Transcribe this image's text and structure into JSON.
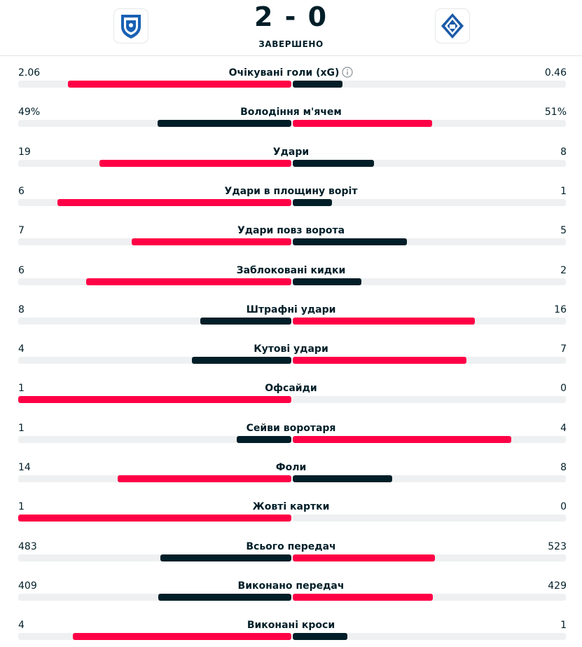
{
  "match": {
    "score": "2 - 0",
    "status": "ЗАВЕРШЕНО",
    "home_logo": "hoffenheim-crest",
    "away_logo": "dynamo-kyiv-crest"
  },
  "colors": {
    "leader": "#ff0046",
    "trailer": "#001e28",
    "track": "#eef0f1"
  },
  "stats": [
    {
      "label": "Очікувані голи (xG)",
      "home": "2.06",
      "away": "0.46",
      "home_value": 2.06,
      "away_value": 0.46,
      "info": true
    },
    {
      "label": "Володіння м'ячем",
      "home": "49%",
      "away": "51%",
      "home_value": 49,
      "away_value": 51
    },
    {
      "label": "Удари",
      "home": "19",
      "away": "8",
      "home_value": 19,
      "away_value": 8
    },
    {
      "label": "Удари в площину воріт",
      "home": "6",
      "away": "1",
      "home_value": 6,
      "away_value": 1
    },
    {
      "label": "Удари повз ворота",
      "home": "7",
      "away": "5",
      "home_value": 7,
      "away_value": 5
    },
    {
      "label": "Заблоковані кидки",
      "home": "6",
      "away": "2",
      "home_value": 6,
      "away_value": 2
    },
    {
      "label": "Штрафні удари",
      "home": "8",
      "away": "16",
      "home_value": 8,
      "away_value": 16
    },
    {
      "label": "Кутові удари",
      "home": "4",
      "away": "7",
      "home_value": 4,
      "away_value": 7
    },
    {
      "label": "Офсайди",
      "home": "1",
      "away": "0",
      "home_value": 1,
      "away_value": 0
    },
    {
      "label": "Сейви воротаря",
      "home": "1",
      "away": "4",
      "home_value": 1,
      "away_value": 4
    },
    {
      "label": "Фоли",
      "home": "14",
      "away": "8",
      "home_value": 14,
      "away_value": 8
    },
    {
      "label": "Жовті картки",
      "home": "1",
      "away": "0",
      "home_value": 1,
      "away_value": 0
    },
    {
      "label": "Всього передач",
      "home": "483",
      "away": "523",
      "home_value": 483,
      "away_value": 523
    },
    {
      "label": "Виконано передач",
      "home": "409",
      "away": "429",
      "home_value": 409,
      "away_value": 429
    },
    {
      "label": "Виконані кроси",
      "home": "4",
      "away": "1",
      "home_value": 4,
      "away_value": 1
    }
  ]
}
